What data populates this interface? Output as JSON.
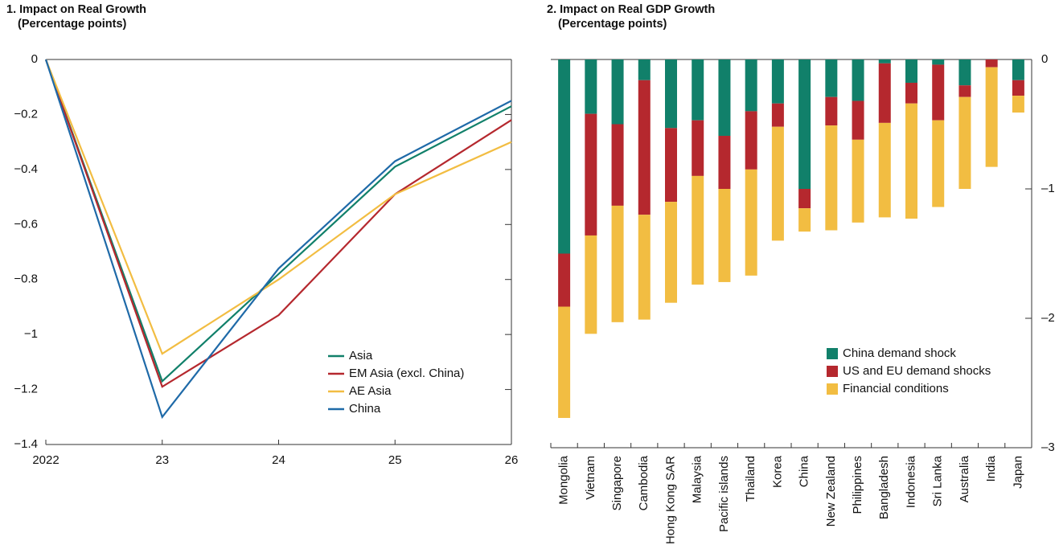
{
  "chart_data": [
    {
      "type": "line",
      "title": "1. Impact on Real Growth",
      "subtitle": "(Percentage points)",
      "categories": [
        "2022",
        "23",
        "24",
        "25",
        "26"
      ],
      "series": [
        {
          "name": "Asia",
          "color": "#11806a",
          "values": [
            0,
            -1.17,
            -0.78,
            -0.39,
            -0.17
          ]
        },
        {
          "name": "EM Asia (excl. China)",
          "color": "#b5282e",
          "values": [
            0,
            -1.19,
            -0.93,
            -0.49,
            -0.22
          ]
        },
        {
          "name": "AE Asia",
          "color": "#f2bd42",
          "values": [
            0,
            -1.07,
            -0.8,
            -0.49,
            -0.3
          ]
        },
        {
          "name": "China",
          "color": "#1f6aa8",
          "values": [
            0,
            -1.3,
            -0.76,
            -0.37,
            -0.15
          ]
        }
      ],
      "ylim": [
        -1.4,
        0
      ],
      "yticks": [
        0,
        {
          "value": -0.2,
          "label": "−0.2"
        },
        {
          "value": -0.4,
          "label": "−0.4"
        },
        {
          "value": -0.6,
          "label": "−0.6"
        },
        {
          "value": -0.8,
          "label": "−0.8"
        },
        {
          "value": -1,
          "label": "−1"
        },
        {
          "value": -1.2,
          "label": "−1.2"
        },
        {
          "value": -1.4,
          "label": "−1.4"
        }
      ],
      "legend": "lower right"
    },
    {
      "type": "bar",
      "stacked": true,
      "title": "2. Impact on Real GDP Growth",
      "subtitle": "(Percentage points)",
      "categories": [
        "Mongolia",
        "Vietnam",
        "Singapore",
        "Cambodia",
        "Hong Kong SAR",
        "Malaysia",
        "Pacific islands",
        "Thailand",
        "Korea",
        "China",
        "New Zealand",
        "Philippines",
        "Bangladesh",
        "Indonesia",
        "Sri Lanka",
        "Australia",
        "India",
        "Japan"
      ],
      "series": [
        {
          "name": "China demand shock",
          "color": "#11806a",
          "values": [
            -1.5,
            -0.42,
            -0.5,
            -0.16,
            -0.53,
            -0.47,
            -0.59,
            -0.4,
            -0.34,
            -1.0,
            -0.29,
            -0.32,
            -0.03,
            -0.18,
            -0.04,
            -0.2,
            0,
            -0.16
          ]
        },
        {
          "name": "US and EU demand shocks",
          "color": "#b5282e",
          "values": [
            -0.41,
            -0.94,
            -0.63,
            -1.04,
            -0.57,
            -0.43,
            -0.41,
            -0.45,
            -0.18,
            -0.15,
            -0.22,
            -0.3,
            -0.46,
            -0.16,
            -0.43,
            -0.09,
            -0.06,
            -0.12
          ]
        },
        {
          "name": "Financial conditions",
          "color": "#f2bd42",
          "values": [
            -0.86,
            -0.76,
            -0.9,
            -0.81,
            -0.78,
            -0.84,
            -0.72,
            -0.82,
            -0.88,
            -0.18,
            -0.81,
            -0.64,
            -0.73,
            -0.89,
            -0.67,
            -0.71,
            -0.77,
            -0.13
          ]
        }
      ],
      "ylim": [
        -3,
        0
      ],
      "yticks": [
        0,
        {
          "value": -1,
          "label": "–1"
        },
        {
          "value": -2,
          "label": "–2"
        },
        {
          "value": -3,
          "label": "–3"
        }
      ],
      "legend": "lower right"
    }
  ]
}
